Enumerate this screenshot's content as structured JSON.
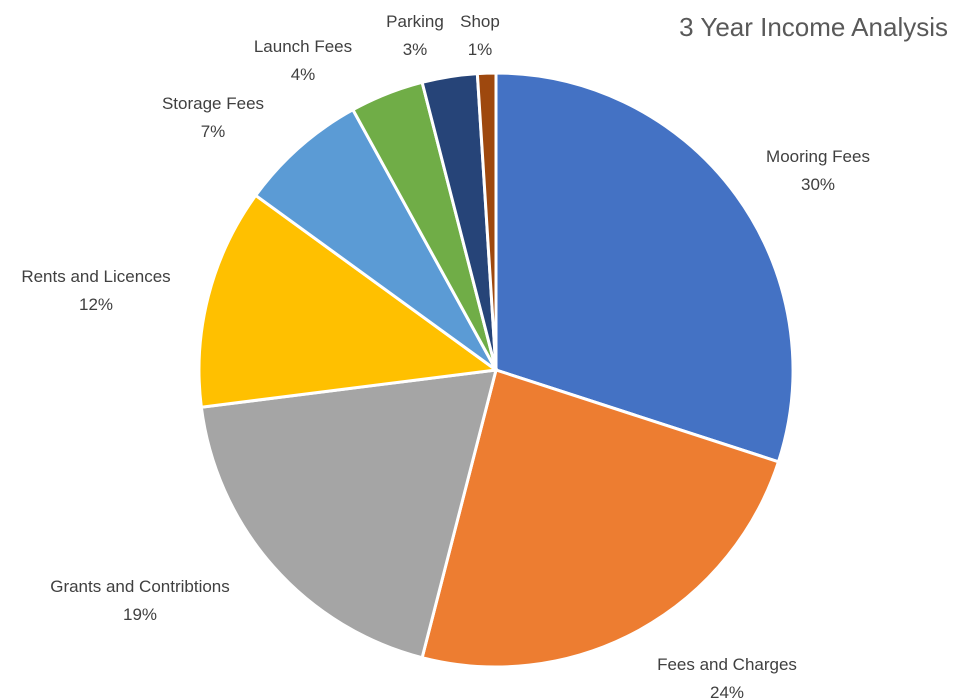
{
  "chart_data": {
    "type": "pie",
    "title": "3 Year Income Analysis",
    "slices": [
      {
        "label": "Mooring Fees",
        "value": 30,
        "percent_label": "30%",
        "color": "#4472C4"
      },
      {
        "label": "Fees and Charges",
        "value": 24,
        "percent_label": "24%",
        "color": "#ED7D31"
      },
      {
        "label": "Grants and Contribtions",
        "value": 19,
        "percent_label": "19%",
        "color": "#A5A5A5"
      },
      {
        "label": "Rents and Licences",
        "value": 12,
        "percent_label": "12%",
        "color": "#FFC000"
      },
      {
        "label": "Storage Fees",
        "value": 7,
        "percent_label": "7%",
        "color": "#5B9BD5"
      },
      {
        "label": "Launch Fees",
        "value": 4,
        "percent_label": "4%",
        "color": "#70AD47"
      },
      {
        "label": "Parking",
        "value": 3,
        "percent_label": "3%",
        "color": "#264478"
      },
      {
        "label": "Shop",
        "value": 1,
        "percent_label": "1%",
        "color": "#9E480E"
      }
    ],
    "legend": "none",
    "data_labels": "outside"
  }
}
